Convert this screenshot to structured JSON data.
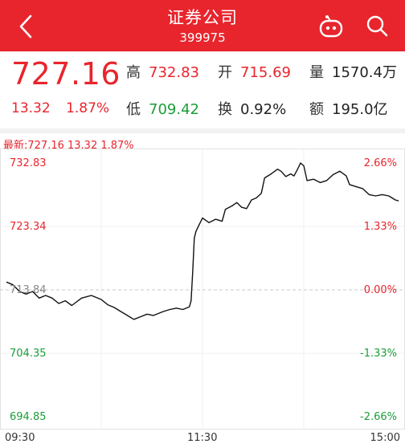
{
  "header": {
    "title": "证券公司",
    "code": "399975",
    "bg_color": "#e8252d",
    "back_icon": "chevron-left-icon",
    "robot_icon": "robot-assistant-icon",
    "search_icon": "search-icon"
  },
  "quote": {
    "price": "727.16",
    "change": "13.32",
    "change_pct": "1.87%",
    "high_label": "高",
    "high": "732.83",
    "open_label": "开",
    "open": "715.69",
    "volume_label": "量",
    "volume": "1570.4万",
    "low_label": "低",
    "low": "709.42",
    "turnover_label": "换",
    "turnover": "0.92%",
    "amount_label": "额",
    "amount": "195.0亿"
  },
  "chart_header": {
    "latest": "最新:727.16 13.32 1.87%"
  },
  "colors": {
    "up": "#e8252d",
    "down": "#1a9e38",
    "line": "#111111"
  },
  "chart_data": {
    "type": "line",
    "y_left_ticks": [
      "732.83",
      "723.34",
      "713.84",
      "704.35",
      "694.85"
    ],
    "y_right_ticks": [
      "2.66%",
      "1.33%",
      "0.00%",
      "-1.33%",
      "-2.66%"
    ],
    "x_ticks": [
      "09:30",
      "11:30",
      "15:00"
    ],
    "ylim": [
      694.85,
      732.83
    ],
    "prev_close": 713.84,
    "x_domain": [
      0,
      240
    ],
    "series": [
      {
        "values": [
          [
            0,
            715.0
          ],
          [
            4,
            714.6
          ],
          [
            8,
            713.6
          ],
          [
            12,
            713.2
          ],
          [
            16,
            713.6
          ],
          [
            20,
            712.6
          ],
          [
            24,
            713.0
          ],
          [
            28,
            712.6
          ],
          [
            32,
            711.8
          ],
          [
            36,
            712.2
          ],
          [
            40,
            711.5
          ],
          [
            46,
            712.6
          ],
          [
            52,
            713.0
          ],
          [
            58,
            712.4
          ],
          [
            62,
            711.6
          ],
          [
            66,
            711.2
          ],
          [
            70,
            710.6
          ],
          [
            74,
            710.0
          ],
          [
            76,
            709.7
          ],
          [
            78,
            709.42
          ],
          [
            82,
            709.8
          ],
          [
            86,
            710.2
          ],
          [
            90,
            710.0
          ],
          [
            96,
            710.6
          ],
          [
            100,
            710.9
          ],
          [
            104,
            711.1
          ],
          [
            108,
            710.9
          ],
          [
            112,
            711.3
          ],
          [
            113,
            712.2
          ],
          [
            114,
            716.5
          ],
          [
            115,
            721.6
          ],
          [
            116,
            722.6
          ],
          [
            118,
            723.6
          ],
          [
            120,
            724.6
          ],
          [
            124,
            723.9
          ],
          [
            128,
            724.4
          ],
          [
            132,
            724.1
          ],
          [
            134,
            725.9
          ],
          [
            138,
            726.4
          ],
          [
            141,
            726.9
          ],
          [
            144,
            726.2
          ],
          [
            147,
            726.0
          ],
          [
            150,
            727.3
          ],
          [
            153,
            727.6
          ],
          [
            156,
            728.3
          ],
          [
            158,
            730.6
          ],
          [
            162,
            731.2
          ],
          [
            166,
            731.9
          ],
          [
            168,
            731.6
          ],
          [
            171,
            730.8
          ],
          [
            174,
            731.2
          ],
          [
            176,
            730.9
          ],
          [
            178,
            731.8
          ],
          [
            180,
            732.83
          ],
          [
            182,
            732.4
          ],
          [
            184,
            730.2
          ],
          [
            188,
            730.4
          ],
          [
            192,
            729.9
          ],
          [
            196,
            730.2
          ],
          [
            200,
            731.1
          ],
          [
            204,
            731.6
          ],
          [
            208,
            730.9
          ],
          [
            210,
            729.6
          ],
          [
            214,
            729.3
          ],
          [
            218,
            729.0
          ],
          [
            222,
            728.1
          ],
          [
            226,
            727.9
          ],
          [
            230,
            728.1
          ],
          [
            234,
            727.9
          ],
          [
            238,
            727.3
          ],
          [
            240,
            727.16
          ]
        ]
      }
    ]
  }
}
